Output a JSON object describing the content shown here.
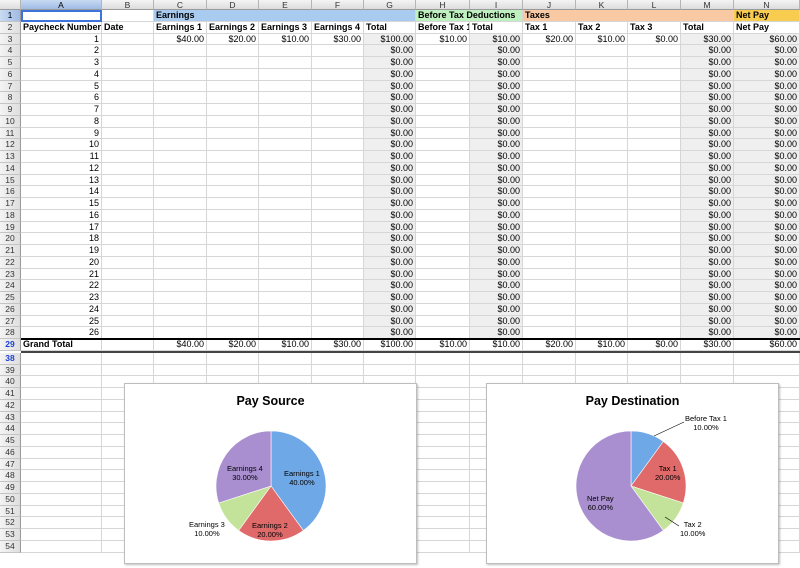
{
  "columns": [
    "A",
    "B",
    "C",
    "D",
    "E",
    "F",
    "G",
    "H",
    "I",
    "J",
    "K",
    "L",
    "M",
    "N"
  ],
  "row_numbers": [
    "1",
    "2",
    "3",
    "4",
    "5",
    "6",
    "7",
    "8",
    "9",
    "10",
    "11",
    "12",
    "13",
    "14",
    "15",
    "16",
    "17",
    "18",
    "19",
    "20",
    "21",
    "22",
    "23",
    "24",
    "25",
    "26",
    "27",
    "28",
    "29",
    "38",
    "39",
    "40",
    "41",
    "42",
    "43",
    "44",
    "45",
    "46",
    "47",
    "48",
    "49",
    "50",
    "51",
    "52",
    "53",
    "54"
  ],
  "group_headers": {
    "earnings": "Earnings",
    "before_tax": "Before Tax Deductions",
    "taxes": "Taxes",
    "net_pay": "Net Pay"
  },
  "column_headers": [
    "Paycheck Number",
    "Date",
    "Earnings 1",
    "Earnings 2",
    "Earnings 3",
    "Earnings 4",
    "Total",
    "Before Tax 1",
    "Total",
    "Tax 1",
    "Tax 2",
    "Tax 3",
    "Total",
    "Net Pay"
  ],
  "rows": [
    {
      "num": "1",
      "c": "$40.00",
      "d": "$20.00",
      "e": "$10.00",
      "f": "$30.00",
      "g": "$100.00",
      "h": "$10.00",
      "i": "$10.00",
      "j": "$20.00",
      "k": "$10.00",
      "l": "$0.00",
      "m": "$30.00",
      "n": "$60.00"
    },
    {
      "num": "2",
      "g": "$0.00",
      "i": "$0.00",
      "m": "$0.00",
      "n": "$0.00"
    },
    {
      "num": "3",
      "g": "$0.00",
      "i": "$0.00",
      "m": "$0.00",
      "n": "$0.00"
    },
    {
      "num": "4",
      "g": "$0.00",
      "i": "$0.00",
      "m": "$0.00",
      "n": "$0.00"
    },
    {
      "num": "5",
      "g": "$0.00",
      "i": "$0.00",
      "m": "$0.00",
      "n": "$0.00"
    },
    {
      "num": "6",
      "g": "$0.00",
      "i": "$0.00",
      "m": "$0.00",
      "n": "$0.00"
    },
    {
      "num": "7",
      "g": "$0.00",
      "i": "$0.00",
      "m": "$0.00",
      "n": "$0.00"
    },
    {
      "num": "8",
      "g": "$0.00",
      "i": "$0.00",
      "m": "$0.00",
      "n": "$0.00"
    },
    {
      "num": "9",
      "g": "$0.00",
      "i": "$0.00",
      "m": "$0.00",
      "n": "$0.00"
    },
    {
      "num": "10",
      "g": "$0.00",
      "i": "$0.00",
      "m": "$0.00",
      "n": "$0.00"
    },
    {
      "num": "11",
      "g": "$0.00",
      "i": "$0.00",
      "m": "$0.00",
      "n": "$0.00"
    },
    {
      "num": "12",
      "g": "$0.00",
      "i": "$0.00",
      "m": "$0.00",
      "n": "$0.00"
    },
    {
      "num": "13",
      "g": "$0.00",
      "i": "$0.00",
      "m": "$0.00",
      "n": "$0.00"
    },
    {
      "num": "14",
      "g": "$0.00",
      "i": "$0.00",
      "m": "$0.00",
      "n": "$0.00"
    },
    {
      "num": "15",
      "g": "$0.00",
      "i": "$0.00",
      "m": "$0.00",
      "n": "$0.00"
    },
    {
      "num": "16",
      "g": "$0.00",
      "i": "$0.00",
      "m": "$0.00",
      "n": "$0.00"
    },
    {
      "num": "17",
      "g": "$0.00",
      "i": "$0.00",
      "m": "$0.00",
      "n": "$0.00"
    },
    {
      "num": "18",
      "g": "$0.00",
      "i": "$0.00",
      "m": "$0.00",
      "n": "$0.00"
    },
    {
      "num": "19",
      "g": "$0.00",
      "i": "$0.00",
      "m": "$0.00",
      "n": "$0.00"
    },
    {
      "num": "20",
      "g": "$0.00",
      "i": "$0.00",
      "m": "$0.00",
      "n": "$0.00"
    },
    {
      "num": "21",
      "g": "$0.00",
      "i": "$0.00",
      "m": "$0.00",
      "n": "$0.00"
    },
    {
      "num": "22",
      "g": "$0.00",
      "i": "$0.00",
      "m": "$0.00",
      "n": "$0.00"
    },
    {
      "num": "23",
      "g": "$0.00",
      "i": "$0.00",
      "m": "$0.00",
      "n": "$0.00"
    },
    {
      "num": "24",
      "g": "$0.00",
      "i": "$0.00",
      "m": "$0.00",
      "n": "$0.00"
    },
    {
      "num": "25",
      "g": "$0.00",
      "i": "$0.00",
      "m": "$0.00",
      "n": "$0.00"
    },
    {
      "num": "26",
      "g": "$0.00",
      "i": "$0.00",
      "m": "$0.00",
      "n": "$0.00"
    }
  ],
  "grand_total": {
    "label": "Grand Total",
    "c": "$40.00",
    "d": "$20.00",
    "e": "$10.00",
    "f": "$30.00",
    "g": "$100.00",
    "h": "$10.00",
    "i": "$10.00",
    "j": "$20.00",
    "k": "$10.00",
    "l": "$0.00",
    "m": "$30.00",
    "n": "$60.00"
  },
  "colors": {
    "earnings": "#a9cbef",
    "before_tax": "#bff0bf",
    "taxes": "#f8c9a3",
    "net_pay": "#f8cc4f",
    "selection": "#3d74d9",
    "green_triangle": "#1a8a1a"
  },
  "chart_data": [
    {
      "type": "pie",
      "title": "Pay Source",
      "slices": [
        {
          "label": "Earnings 1",
          "value": 40,
          "pct": "40.00%",
          "color": "#6fa8e6"
        },
        {
          "label": "Earnings 2",
          "value": 20,
          "pct": "20.00%",
          "color": "#e06a6a"
        },
        {
          "label": "Earnings 3",
          "value": 10,
          "pct": "10.00%",
          "color": "#c4e39a"
        },
        {
          "label": "Earnings 4",
          "value": 30,
          "pct": "30.00%",
          "color": "#a98fd0"
        }
      ]
    },
    {
      "type": "pie",
      "title": "Pay Destination",
      "slices": [
        {
          "label": "Before Tax 1",
          "value": 10,
          "pct": "10.00%",
          "color": "#6fa8e6"
        },
        {
          "label": "Tax 1",
          "value": 20,
          "pct": "20.00%",
          "color": "#e06a6a"
        },
        {
          "label": "Tax 2",
          "value": 10,
          "pct": "10.00%",
          "color": "#c4e39a"
        },
        {
          "label": "Net Pay",
          "value": 60,
          "pct": "60.00%",
          "color": "#a98fd0"
        }
      ]
    }
  ]
}
